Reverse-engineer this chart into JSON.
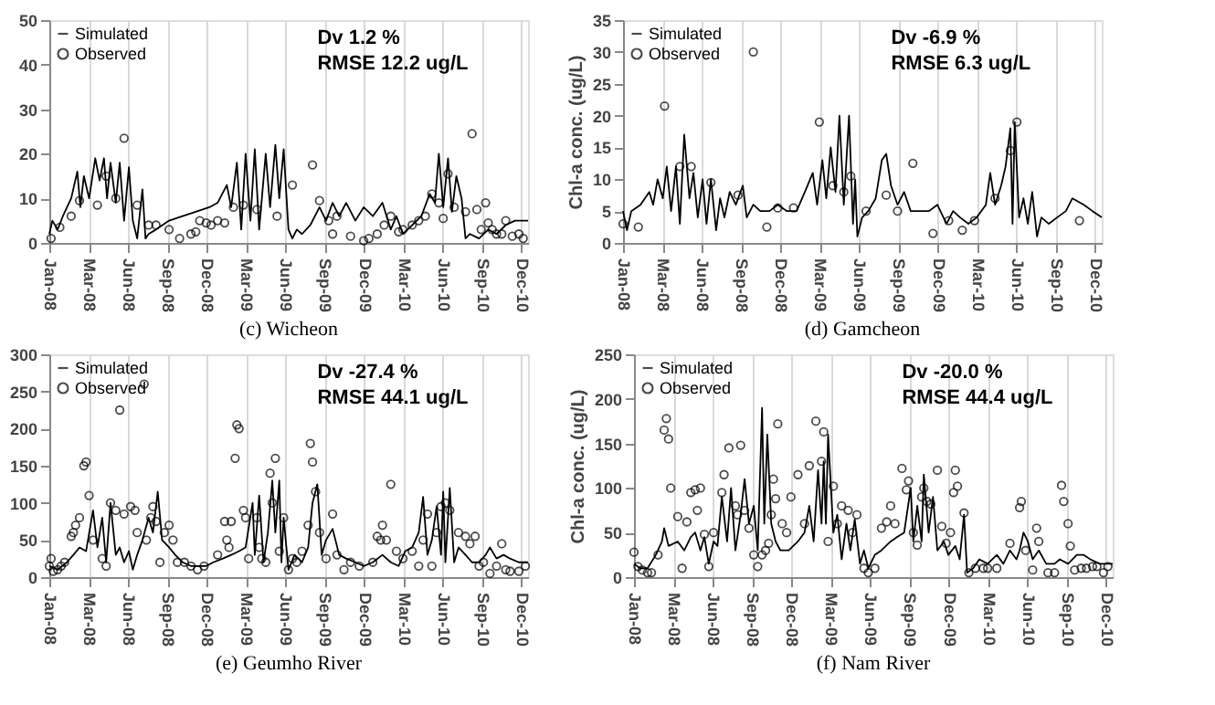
{
  "chart_data": [
    {
      "type": "line",
      "title": "(c)  Wicheon",
      "annotations": [
        "Dv      1.2 %",
        "RMSE  12.2 ug/L"
      ],
      "xlim": [
        "2008-01-01",
        "2010-12-31"
      ],
      "xticks": [
        {
          "value": "2008-01-01",
          "label": "Jan-08"
        },
        {
          "value": "2008-03-31",
          "label": "Mar-08"
        },
        {
          "value": "2008-06-29",
          "label": "Jun-08"
        },
        {
          "value": "2008-09-27",
          "label": "Sep-08"
        },
        {
          "value": "2008-12-26",
          "label": "Dec-08"
        },
        {
          "value": "2009-03-26",
          "label": "Mar-09"
        },
        {
          "value": "2009-06-24",
          "label": "Jun-09"
        },
        {
          "value": "2009-09-22",
          "label": "Sep-09"
        },
        {
          "value": "2009-12-21",
          "label": "Dec-09"
        },
        {
          "value": "2010-03-21",
          "label": "Mar-10"
        },
        {
          "value": "2010-06-19",
          "label": "Jun-10"
        },
        {
          "value": "2010-09-17",
          "label": "Sep-10"
        },
        {
          "value": "2010-12-16",
          "label": "Dec-10"
        }
      ],
      "ylim": [
        0,
        50
      ],
      "yticks": [
        0,
        10,
        20,
        30,
        40,
        50
      ],
      "grid": "x",
      "legend": "top left",
      "series": [
        {
          "name": "Simulated",
          "color": "#000000",
          "marker": "none",
          "x": [
            "2008-01-01",
            "2008-01-08",
            "2008-01-20",
            "2008-02-01",
            "2008-02-20",
            "2008-03-05",
            "2008-03-12",
            "2008-03-20",
            "2008-04-01",
            "2008-04-15",
            "2008-04-25",
            "2008-05-05",
            "2008-05-12",
            "2008-05-20",
            "2008-06-01",
            "2008-06-10",
            "2008-06-20",
            "2008-07-01",
            "2008-07-10",
            "2008-07-20",
            "2008-08-01",
            "2008-08-08",
            "2008-08-15",
            "2008-09-01",
            "2008-10-01",
            "2008-11-01",
            "2008-12-01",
            "2009-01-01",
            "2009-01-20",
            "2009-02-10",
            "2009-02-20",
            "2009-03-05",
            "2009-03-15",
            "2009-03-25",
            "2009-04-05",
            "2009-04-15",
            "2009-04-25",
            "2009-05-10",
            "2009-05-20",
            "2009-06-01",
            "2009-06-10",
            "2009-06-20",
            "2009-07-01",
            "2009-07-10",
            "2009-07-20",
            "2009-08-01",
            "2009-08-20",
            "2009-09-10",
            "2009-09-25",
            "2009-10-10",
            "2009-10-25",
            "2009-11-10",
            "2009-12-01",
            "2009-12-20",
            "2010-01-10",
            "2010-02-01",
            "2010-02-20",
            "2010-03-05",
            "2010-03-20",
            "2010-04-10",
            "2010-05-01",
            "2010-05-20",
            "2010-06-01",
            "2010-06-10",
            "2010-06-20",
            "2010-07-01",
            "2010-07-10",
            "2010-07-20",
            "2010-08-01",
            "2010-08-10",
            "2010-08-20",
            "2010-09-10",
            "2010-10-01",
            "2010-10-20",
            "2010-11-10",
            "2010-12-01",
            "2010-12-31"
          ],
          "values": [
            2,
            5,
            3,
            6,
            10,
            16,
            8,
            15,
            10,
            19,
            14,
            19,
            10,
            18,
            9,
            18,
            5,
            17,
            5,
            1,
            12,
            1,
            2,
            3,
            5,
            6,
            7,
            8,
            9,
            13,
            8,
            18,
            3,
            20,
            5,
            21,
            3,
            20,
            8,
            22,
            10,
            21,
            3,
            1,
            3,
            2,
            4,
            8,
            5,
            9,
            6,
            9,
            5,
            8,
            6,
            9,
            3,
            6,
            2,
            4,
            6,
            11,
            9,
            20,
            8,
            19,
            7,
            15,
            10,
            1,
            2,
            1,
            3,
            2,
            4,
            5,
            5
          ]
        },
        {
          "name": "Observed",
          "type": "scatter",
          "color": "#000000",
          "marker": "circle",
          "x": [
            "2008-01-05",
            "2008-01-25",
            "2008-02-20",
            "2008-03-10",
            "2008-04-20",
            "2008-05-10",
            "2008-06-01",
            "2008-06-20",
            "2008-07-20",
            "2008-08-15",
            "2008-09-01",
            "2008-10-01",
            "2008-10-25",
            "2008-11-20",
            "2008-12-01",
            "2008-12-10",
            "2008-12-25",
            "2009-01-05",
            "2009-01-20",
            "2009-02-05",
            "2009-02-25",
            "2009-03-20",
            "2009-04-20",
            "2009-06-05",
            "2009-07-10",
            "2009-08-25",
            "2009-09-10",
            "2009-10-01",
            "2009-10-10",
            "2009-10-20",
            "2009-11-20",
            "2009-12-20",
            "2010-01-01",
            "2010-01-20",
            "2010-02-05",
            "2010-02-20",
            "2010-03-10",
            "2010-03-20",
            "2010-04-10",
            "2010-04-25",
            "2010-05-10",
            "2010-05-25",
            "2010-06-10",
            "2010-06-20",
            "2010-07-01",
            "2010-07-15",
            "2010-08-10",
            "2010-08-25",
            "2010-09-05",
            "2010-09-15",
            "2010-09-25",
            "2010-10-01",
            "2010-10-10",
            "2010-10-20",
            "2010-11-01",
            "2010-11-10",
            "2010-11-25",
            "2010-12-10",
            "2010-12-20"
          ],
          "values": [
            1,
            3.5,
            6,
            9.5,
            8.5,
            15,
            10,
            23.5,
            8.5,
            4,
            4,
            3,
            1,
            2,
            2.5,
            5,
            4.5,
            4,
            5,
            4.5,
            8,
            8.5,
            7.5,
            6,
            13,
            17.5,
            9.5,
            5,
            2,
            6,
            1.5,
            0.5,
            1,
            2,
            4,
            6,
            2.5,
            3,
            4,
            5,
            6,
            11,
            9,
            5.5,
            15.5,
            8,
            7,
            24.5,
            7.5,
            3,
            9,
            4.5,
            3,
            2,
            2,
            5,
            1.5,
            2,
            1
          ]
        }
      ]
    },
    {
      "type": "line",
      "title": "(d)  Gamcheon",
      "ylabel": "Chl-a conc.  (ug/L)",
      "annotations": [
        "Dv      -6.9 %",
        "RMSE  6.3 ug/L"
      ],
      "xlim": [
        "2008-01-01",
        "2010-12-31"
      ],
      "xticks": [
        {
          "value": "2008-01-01",
          "label": "Jan-08"
        },
        {
          "value": "2008-03-31",
          "label": "Mar-08"
        },
        {
          "value": "2008-06-29",
          "label": "Jun-08"
        },
        {
          "value": "2008-09-27",
          "label": "Sep-08"
        },
        {
          "value": "2008-12-26",
          "label": "Dec-08"
        },
        {
          "value": "2009-03-26",
          "label": "Mar-09"
        },
        {
          "value": "2009-06-24",
          "label": "Jun-09"
        },
        {
          "value": "2009-09-22",
          "label": "Sep-09"
        },
        {
          "value": "2009-12-21",
          "label": "Dec-09"
        },
        {
          "value": "2010-03-21",
          "label": "Mar-10"
        },
        {
          "value": "2010-06-19",
          "label": "Jun-10"
        },
        {
          "value": "2010-09-17",
          "label": "Sep-10"
        },
        {
          "value": "2010-12-16",
          "label": "Dec-10"
        }
      ],
      "ylim": [
        0,
        35
      ],
      "yticks": [
        0,
        5,
        10,
        15,
        20,
        25,
        30,
        35
      ],
      "grid": "x",
      "legend": "top left",
      "series": [
        {
          "name": "Simulated",
          "color": "#000000",
          "marker": "none",
          "x": [
            "2008-01-01",
            "2008-01-10",
            "2008-01-20",
            "2008-02-10",
            "2008-03-01",
            "2008-03-10",
            "2008-03-20",
            "2008-04-01",
            "2008-04-10",
            "2008-04-20",
            "2008-05-01",
            "2008-05-10",
            "2008-05-20",
            "2008-06-01",
            "2008-06-10",
            "2008-06-20",
            "2008-07-01",
            "2008-07-10",
            "2008-07-20",
            "2008-08-01",
            "2008-08-10",
            "2008-08-20",
            "2008-09-01",
            "2008-09-15",
            "2008-10-01",
            "2008-10-10",
            "2008-10-25",
            "2008-11-10",
            "2008-12-01",
            "2008-12-20",
            "2009-01-10",
            "2009-02-01",
            "2009-02-20",
            "2009-03-10",
            "2009-03-20",
            "2009-04-01",
            "2009-04-10",
            "2009-04-20",
            "2009-05-01",
            "2009-05-10",
            "2009-05-20",
            "2009-06-01",
            "2009-06-10",
            "2009-06-15",
            "2009-06-20",
            "2009-07-01",
            "2009-07-15",
            "2009-08-01",
            "2009-08-15",
            "2009-08-25",
            "2009-09-05",
            "2009-09-20",
            "2009-10-05",
            "2009-10-20",
            "2009-11-10",
            "2009-12-01",
            "2009-12-20",
            "2010-01-10",
            "2010-01-25",
            "2010-02-10",
            "2010-03-01",
            "2010-03-20",
            "2010-04-10",
            "2010-04-20",
            "2010-05-01",
            "2010-05-15",
            "2010-05-25",
            "2010-06-05",
            "2010-06-10",
            "2010-06-15",
            "2010-06-25",
            "2010-07-05",
            "2010-07-15",
            "2010-07-25",
            "2010-08-05",
            "2010-08-15",
            "2010-09-01",
            "2010-09-20",
            "2010-10-10",
            "2010-10-25",
            "2010-11-20",
            "2010-12-10",
            "2010-12-31"
          ],
          "values": [
            5,
            2,
            5,
            6,
            8,
            6,
            10,
            7,
            12,
            5,
            12,
            3,
            17,
            7,
            11,
            4,
            10,
            3,
            10,
            2,
            7,
            4,
            8,
            6,
            9,
            4,
            6,
            5,
            5,
            6,
            5,
            5,
            8,
            11,
            6,
            13,
            7,
            15,
            8,
            20,
            6,
            20,
            3,
            10,
            1,
            4,
            5,
            7,
            13,
            14,
            9,
            6,
            8,
            5,
            5,
            5,
            6,
            3,
            5,
            4,
            3,
            4,
            6,
            11,
            6,
            9,
            12,
            18,
            3,
            19,
            4,
            7,
            3,
            8,
            1,
            4,
            3,
            4,
            5,
            7,
            6,
            5,
            4
          ]
        },
        {
          "name": "Observed",
          "type": "scatter",
          "color": "#000000",
          "marker": "circle",
          "x": [
            "2008-01-01",
            "2008-02-05",
            "2008-04-05",
            "2008-05-10",
            "2008-06-05",
            "2008-07-20",
            "2008-09-20",
            "2008-10-25",
            "2008-11-25",
            "2008-12-20",
            "2009-01-25",
            "2009-03-25",
            "2009-04-25",
            "2009-05-20",
            "2009-06-05",
            "2009-07-10",
            "2009-08-25",
            "2009-09-20",
            "2009-10-25",
            "2009-12-10",
            "2010-01-15",
            "2010-02-15",
            "2010-03-15",
            "2010-05-01",
            "2010-06-05",
            "2010-06-20",
            "2010-11-10"
          ],
          "values": [
            3,
            2.5,
            21.5,
            12,
            12,
            9.5,
            7.5,
            30,
            2.5,
            5.5,
            5.5,
            19,
            9,
            8,
            10.5,
            5,
            7.5,
            5,
            12.5,
            1.5,
            3.5,
            2,
            3.5,
            7,
            14.5,
            19,
            3.5
          ]
        }
      ]
    },
    {
      "type": "line",
      "title": "(e)  Geumho  River",
      "annotations": [
        "Dv      -27.4 %",
        "RMSE  44.1 ug/L"
      ],
      "xlim": [
        "2008-01-01",
        "2010-12-31"
      ],
      "xticks": [
        {
          "value": "2008-01-01",
          "label": "Jan-08"
        },
        {
          "value": "2008-03-31",
          "label": "Mar-08"
        },
        {
          "value": "2008-06-29",
          "label": "Jun-08"
        },
        {
          "value": "2008-09-27",
          "label": "Sep-08"
        },
        {
          "value": "2008-12-26",
          "label": "Dec-08"
        },
        {
          "value": "2009-03-26",
          "label": "Mar-09"
        },
        {
          "value": "2009-06-24",
          "label": "Jun-09"
        },
        {
          "value": "2009-09-22",
          "label": "Sep-09"
        },
        {
          "value": "2009-12-21",
          "label": "Dec-09"
        },
        {
          "value": "2010-03-21",
          "label": "Mar-10"
        },
        {
          "value": "2010-06-19",
          "label": "Jun-10"
        },
        {
          "value": "2010-09-17",
          "label": "Sep-10"
        },
        {
          "value": "2010-12-16",
          "label": "Dec-10"
        }
      ],
      "ylim": [
        0,
        300
      ],
      "yticks": [
        0,
        50,
        100,
        150,
        200,
        250,
        300
      ],
      "grid": "x",
      "legend": "top left",
      "series": [
        {
          "name": "Simulated",
          "color": "#000000",
          "marker": "none",
          "x": [
            "2008-01-01",
            "2008-01-20",
            "2008-02-10",
            "2008-02-25",
            "2008-03-10",
            "2008-03-25",
            "2008-04-10",
            "2008-04-20",
            "2008-05-01",
            "2008-05-10",
            "2008-05-20",
            "2008-06-01",
            "2008-06-10",
            "2008-06-20",
            "2008-07-01",
            "2008-07-10",
            "2008-07-20",
            "2008-08-01",
            "2008-08-15",
            "2008-08-25",
            "2008-09-05",
            "2008-09-15",
            "2008-10-01",
            "2008-10-15",
            "2008-11-01",
            "2008-11-20",
            "2008-12-10",
            "2008-12-25",
            "2009-01-10",
            "2009-02-01",
            "2009-02-20",
            "2009-03-10",
            "2009-03-25",
            "2009-04-10",
            "2009-04-15",
            "2009-04-25",
            "2009-05-05",
            "2009-05-15",
            "2009-05-25",
            "2009-06-01",
            "2009-06-10",
            "2009-06-15",
            "2009-06-20",
            "2009-07-01",
            "2009-07-15",
            "2009-08-01",
            "2009-08-15",
            "2009-08-25",
            "2009-09-05",
            "2009-09-15",
            "2009-09-25",
            "2009-10-10",
            "2009-10-25",
            "2009-11-10",
            "2009-12-01",
            "2009-12-20",
            "2010-01-10",
            "2010-02-01",
            "2010-02-20",
            "2010-03-10",
            "2010-03-25",
            "2010-04-10",
            "2010-04-25",
            "2010-05-05",
            "2010-05-15",
            "2010-05-25",
            "2010-06-05",
            "2010-06-15",
            "2010-06-20",
            "2010-06-25",
            "2010-07-05",
            "2010-07-15",
            "2010-07-25",
            "2010-08-10",
            "2010-08-25",
            "2010-09-10",
            "2010-09-25",
            "2010-10-05",
            "2010-10-20",
            "2010-11-05",
            "2010-11-20",
            "2010-12-10",
            "2010-12-31"
          ],
          "values": [
            15,
            10,
            20,
            30,
            40,
            35,
            90,
            40,
            80,
            20,
            100,
            30,
            40,
            20,
            35,
            10,
            30,
            50,
            80,
            60,
            115,
            50,
            40,
            30,
            20,
            15,
            15,
            15,
            20,
            25,
            30,
            35,
            40,
            100,
            30,
            110,
            20,
            60,
            130,
            60,
            130,
            20,
            80,
            10,
            30,
            20,
            40,
            100,
            125,
            30,
            50,
            65,
            30,
            25,
            20,
            15,
            20,
            30,
            20,
            15,
            35,
            40,
            60,
            108,
            30,
            50,
            95,
            30,
            115,
            20,
            120,
            20,
            40,
            30,
            20,
            20,
            30,
            40,
            25,
            30,
            25,
            20,
            20
          ]
        },
        {
          "name": "Observed",
          "type": "scatter",
          "color": "#000000",
          "marker": "circle",
          "x": [
            "2008-01-01",
            "2008-01-05",
            "2008-01-10",
            "2008-01-20",
            "2008-01-28",
            "2008-02-05",
            "2008-02-20",
            "2008-02-25",
            "2008-03-01",
            "2008-03-10",
            "2008-03-20",
            "2008-03-25",
            "2008-04-01",
            "2008-04-10",
            "2008-05-01",
            "2008-05-10",
            "2008-05-20",
            "2008-06-01",
            "2008-06-10",
            "2008-06-20",
            "2008-07-05",
            "2008-07-15",
            "2008-07-20",
            "2008-08-05",
            "2008-08-10",
            "2008-08-20",
            "2008-08-25",
            "2008-09-01",
            "2008-09-10",
            "2008-09-20",
            "2008-10-01",
            "2008-10-10",
            "2008-10-20",
            "2008-11-05",
            "2008-11-20",
            "2008-12-05",
            "2008-12-20",
            "2009-01-20",
            "2009-02-05",
            "2009-02-10",
            "2009-02-15",
            "2009-02-20",
            "2009-03-01",
            "2009-03-05",
            "2009-03-10",
            "2009-03-20",
            "2009-03-25",
            "2009-04-01",
            "2009-04-20",
            "2009-04-25",
            "2009-05-01",
            "2009-05-10",
            "2009-05-20",
            "2009-05-25",
            "2009-06-01",
            "2009-06-10",
            "2009-06-20",
            "2009-07-01",
            "2009-07-10",
            "2009-07-20",
            "2009-08-01",
            "2009-08-15",
            "2009-08-20",
            "2009-08-25",
            "2009-09-01",
            "2009-09-10",
            "2009-09-25",
            "2009-10-10",
            "2009-10-20",
            "2009-11-05",
            "2009-11-20",
            "2009-12-10",
            "2010-01-10",
            "2010-01-20",
            "2010-01-28",
            "2010-02-01",
            "2010-02-10",
            "2010-02-20",
            "2010-03-05",
            "2010-03-20",
            "2010-04-10",
            "2010-04-25",
            "2010-05-05",
            "2010-05-15",
            "2010-05-25",
            "2010-06-05",
            "2010-06-15",
            "2010-06-25",
            "2010-07-05",
            "2010-07-25",
            "2010-08-10",
            "2010-08-20",
            "2010-09-01",
            "2010-09-10",
            "2010-09-20",
            "2010-10-05",
            "2010-10-20",
            "2010-11-01",
            "2010-11-10",
            "2010-11-20",
            "2010-12-10",
            "2010-12-25"
          ],
          "values": [
            15,
            25,
            8,
            10,
            15,
            20,
            55,
            60,
            70,
            80,
            150,
            155,
            110,
            50,
            25,
            15,
            100,
            90,
            225,
            85,
            95,
            90,
            60,
            260,
            50,
            80,
            95,
            75,
            20,
            60,
            70,
            50,
            20,
            20,
            15,
            10,
            15,
            30,
            75,
            50,
            40,
            75,
            160,
            205,
            200,
            90,
            80,
            25,
            80,
            40,
            25,
            20,
            140,
            100,
            160,
            35,
            80,
            10,
            25,
            20,
            35,
            70,
            180,
            155,
            115,
            60,
            25,
            85,
            30,
            10,
            20,
            15,
            20,
            55,
            50,
            70,
            50,
            125,
            35,
            25,
            35,
            15,
            50,
            85,
            15,
            60,
            95,
            100,
            90,
            60,
            55,
            45,
            55,
            15,
            20,
            5,
            15,
            45,
            10,
            8,
            8,
            15
          ]
        }
      ]
    },
    {
      "type": "line",
      "title": "(f)  Nam  River",
      "ylabel": "Chl-a conc.  (ug/L)",
      "annotations": [
        "Dv      -20.0 %",
        "RMSE  44.4 ug/L"
      ],
      "xlim": [
        "2008-01-01",
        "2010-12-31"
      ],
      "xticks": [
        {
          "value": "2008-01-01",
          "label": "Jan-08"
        },
        {
          "value": "2008-03-31",
          "label": "Mar-08"
        },
        {
          "value": "2008-06-29",
          "label": "Jun-08"
        },
        {
          "value": "2008-09-27",
          "label": "Sep-08"
        },
        {
          "value": "2008-12-26",
          "label": "Dec-08"
        },
        {
          "value": "2009-03-26",
          "label": "Mar-09"
        },
        {
          "value": "2009-06-24",
          "label": "Jun-09"
        },
        {
          "value": "2009-09-22",
          "label": "Sep-09"
        },
        {
          "value": "2009-12-21",
          "label": "Dec-09"
        },
        {
          "value": "2010-03-21",
          "label": "Mar-10"
        },
        {
          "value": "2010-06-19",
          "label": "Jun-10"
        },
        {
          "value": "2010-09-17",
          "label": "Sep-10"
        },
        {
          "value": "2010-12-16",
          "label": "Dec-10"
        }
      ],
      "ylim": [
        0,
        250
      ],
      "yticks": [
        0,
        50,
        100,
        150,
        200,
        250
      ],
      "grid": "x",
      "legend": "top left",
      "series": [
        {
          "name": "Simulated",
          "color": "#000000",
          "marker": "none",
          "x": [
            "2008-01-01",
            "2008-01-15",
            "2008-02-01",
            "2008-02-20",
            "2008-03-05",
            "2008-03-10",
            "2008-03-20",
            "2008-04-10",
            "2008-04-25",
            "2008-05-10",
            "2008-05-20",
            "2008-06-01",
            "2008-06-10",
            "2008-06-20",
            "2008-07-01",
            "2008-07-10",
            "2008-07-20",
            "2008-08-01",
            "2008-08-10",
            "2008-08-20",
            "2008-09-01",
            "2008-09-10",
            "2008-09-20",
            "2008-10-01",
            "2008-10-10",
            "2008-10-20",
            "2008-10-25",
            "2008-11-01",
            "2008-11-10",
            "2008-11-20",
            "2008-12-01",
            "2008-12-20",
            "2009-01-10",
            "2009-01-25",
            "2009-02-05",
            "2009-02-15",
            "2009-02-25",
            "2009-03-05",
            "2009-03-10",
            "2009-03-15",
            "2009-03-20",
            "2009-04-01",
            "2009-04-10",
            "2009-04-20",
            "2009-05-01",
            "2009-05-10",
            "2009-05-20",
            "2009-06-01",
            "2009-06-10",
            "2009-06-20",
            "2009-07-05",
            "2009-07-20",
            "2009-08-10",
            "2009-08-25",
            "2009-09-10",
            "2009-09-25",
            "2009-10-01",
            "2009-10-10",
            "2009-10-20",
            "2009-10-25",
            "2009-11-05",
            "2009-11-15",
            "2009-11-25",
            "2009-12-10",
            "2009-12-20",
            "2010-01-05",
            "2010-01-15",
            "2010-01-25",
            "2010-02-01",
            "2010-02-15",
            "2010-03-01",
            "2010-03-20",
            "2010-04-10",
            "2010-04-25",
            "2010-05-10",
            "2010-05-25",
            "2010-06-01",
            "2010-06-10",
            "2010-06-20",
            "2010-07-01",
            "2010-07-15",
            "2010-08-01",
            "2010-08-20",
            "2010-09-01",
            "2010-09-20",
            "2010-10-10",
            "2010-10-25",
            "2010-11-10",
            "2010-12-01",
            "2010-12-31"
          ],
          "values": [
            15,
            10,
            10,
            25,
            40,
            55,
            35,
            40,
            30,
            45,
            50,
            30,
            45,
            15,
            40,
            35,
            90,
            40,
            100,
            30,
            70,
            110,
            60,
            80,
            30,
            190,
            60,
            160,
            60,
            40,
            30,
            30,
            40,
            50,
            80,
            40,
            120,
            60,
            130,
            60,
            160,
            50,
            70,
            20,
            60,
            30,
            65,
            15,
            30,
            10,
            25,
            30,
            40,
            45,
            50,
            100,
            40,
            80,
            40,
            115,
            50,
            90,
            30,
            40,
            25,
            35,
            20,
            70,
            5,
            10,
            20,
            15,
            25,
            15,
            30,
            20,
            30,
            50,
            40,
            20,
            30,
            15,
            15,
            20,
            15,
            25,
            25,
            20,
            15,
            15
          ]
        },
        {
          "name": "Observed",
          "type": "scatter",
          "color": "#000000",
          "marker": "circle",
          "x": [
            "2008-01-01",
            "2008-01-10",
            "2008-01-20",
            "2008-02-01",
            "2008-02-10",
            "2008-02-25",
            "2008-03-10",
            "2008-03-15",
            "2008-03-20",
            "2008-03-25",
            "2008-04-10",
            "2008-04-20",
            "2008-05-01",
            "2008-05-10",
            "2008-05-20",
            "2008-05-25",
            "2008-06-01",
            "2008-06-10",
            "2008-06-20",
            "2008-07-01",
            "2008-07-20",
            "2008-07-25",
            "2008-08-05",
            "2008-08-20",
            "2008-08-25",
            "2008-09-01",
            "2008-09-10",
            "2008-09-20",
            "2008-10-01",
            "2008-10-10",
            "2008-10-20",
            "2008-10-28",
            "2008-11-04",
            "2008-11-10",
            "2008-11-15",
            "2008-11-20",
            "2008-11-25",
            "2008-12-05",
            "2008-12-15",
            "2008-12-25",
            "2009-01-10",
            "2009-01-25",
            "2009-02-05",
            "2009-02-20",
            "2009-03-05",
            "2009-03-10",
            "2009-03-20",
            "2009-04-01",
            "2009-04-10",
            "2009-04-20",
            "2009-05-05",
            "2009-05-15",
            "2009-05-25",
            "2009-06-10",
            "2009-06-20",
            "2009-07-05",
            "2009-07-20",
            "2009-08-01",
            "2009-08-10",
            "2009-08-20",
            "2009-09-05",
            "2009-09-15",
            "2009-09-20",
            "2009-10-01",
            "2009-10-10",
            "2009-10-20",
            "2009-10-25",
            "2009-11-01",
            "2009-11-10",
            "2009-11-25",
            "2009-12-05",
            "2009-12-15",
            "2009-12-25",
            "2010-01-01",
            "2010-01-05",
            "2010-01-10",
            "2010-01-25",
            "2010-02-05",
            "2010-02-20",
            "2010-03-10",
            "2010-03-20",
            "2010-04-10",
            "2010-05-10",
            "2010-06-01",
            "2010-06-05",
            "2010-06-15",
            "2010-07-01",
            "2010-07-10",
            "2010-07-15",
            "2010-08-05",
            "2010-08-20",
            "2010-09-05",
            "2010-09-10",
            "2010-09-20",
            "2010-09-25",
            "2010-10-05",
            "2010-10-20",
            "2010-11-01",
            "2010-11-15",
            "2010-11-25",
            "2010-12-10",
            "2010-12-20"
          ],
          "values": [
            28,
            12,
            8,
            5,
            5,
            25,
            165,
            178,
            155,
            100,
            68,
            10,
            62,
            95,
            98,
            75,
            100,
            48,
            12,
            50,
            95,
            115,
            145,
            80,
            70,
            148,
            75,
            55,
            25,
            12,
            25,
            30,
            38,
            70,
            110,
            88,
            172,
            60,
            50,
            90,
            115,
            60,
            125,
            175,
            130,
            163,
            40,
            102,
            60,
            80,
            75,
            50,
            70,
            10,
            5,
            10,
            55,
            62,
            80,
            60,
            122,
            98,
            108,
            50,
            36,
            90,
            100,
            85,
            82,
            120,
            57,
            38,
            50,
            95,
            120,
            102,
            72,
            5,
            10,
            10,
            10,
            10,
            38,
            78,
            85,
            30,
            8,
            55,
            40,
            5,
            5,
            103,
            85,
            60,
            35,
            8,
            10,
            10,
            12,
            12,
            5,
            12
          ]
        }
      ]
    }
  ]
}
